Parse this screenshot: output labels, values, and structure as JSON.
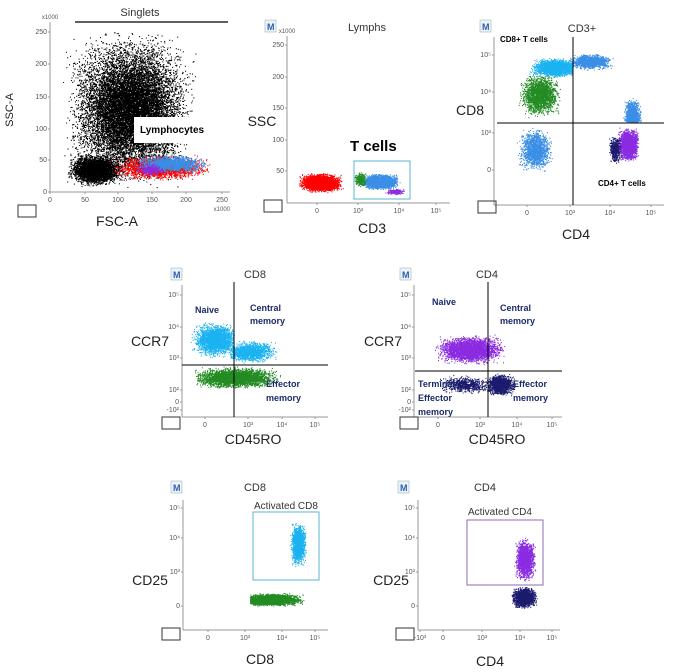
{
  "colors": {
    "black": "#000000",
    "red": "#ff0000",
    "lightblue": "#1ab2f0",
    "blue": "#3a8ee6",
    "green": "#228b22",
    "purple": "#8a2be2",
    "navy": "#1b1b6e",
    "gate_blue": "#5ab4d6",
    "gate_purple": "#8e6bb0"
  },
  "m_badge": "M",
  "panels": [
    {
      "id": "singlets",
      "title": "Singlets",
      "xlabel": "FSC-A",
      "ylabel": "SSC-A",
      "xscale": "x1000",
      "yscale": "x1000",
      "xticks": [
        "0",
        "50",
        "100",
        "150",
        "200",
        "250"
      ],
      "yticks": [
        "250",
        "200",
        "150",
        "100",
        "50",
        "0"
      ],
      "gates": [
        "Lymphocytes"
      ]
    },
    {
      "id": "lymphs",
      "title": "Lymphs",
      "xlabel": "CD3",
      "ylabel": "SSC",
      "yscale": "x1000",
      "xticks": [
        "0",
        "10³",
        "10⁴",
        "10⁵"
      ],
      "yticks": [
        "250",
        "200",
        "150",
        "100",
        "50"
      ],
      "gates": [
        "T cells"
      ]
    },
    {
      "id": "cd3",
      "title": "CD3+",
      "xlabel": "CD4",
      "ylabel": "CD8",
      "xticks": [
        "0",
        "10³",
        "10⁴",
        "10⁵"
      ],
      "yticks": [
        "10⁵",
        "10⁴",
        "10³",
        "0"
      ],
      "gates": [
        "CD8+ T cells",
        "CD4+ T cells"
      ]
    },
    {
      "id": "cd8mem",
      "title": "CD8",
      "xlabel": "CD45RO",
      "ylabel": "CCR7",
      "xticks": [
        "0",
        "10³",
        "10⁴",
        "10⁵"
      ],
      "yticks": [
        "10⁵",
        "10⁴",
        "10³",
        "10²",
        "0",
        "-10²"
      ],
      "gates": [
        "Naive",
        "Central",
        "memory",
        "Effector",
        "memory"
      ]
    },
    {
      "id": "cd4mem",
      "title": "CD4",
      "xlabel": "CD45RO",
      "ylabel": "CCR7",
      "xticks": [
        "0",
        "10³",
        "10⁴",
        "10⁵"
      ],
      "yticks": [
        "10⁵",
        "10⁴",
        "10³",
        "10²",
        "0",
        "-10²"
      ],
      "gates": [
        "Naive",
        "Central",
        "memory",
        "Terminal",
        "Effector",
        "memory",
        "Effector",
        "memory"
      ]
    },
    {
      "id": "cd8act",
      "title": "CD8",
      "xlabel": "CD8",
      "ylabel": "CD25",
      "xticks": [
        "0",
        "10³",
        "10⁴",
        "10⁵"
      ],
      "yticks": [
        "10⁵",
        "10⁴",
        "10³",
        "0"
      ],
      "gates": [
        "Activated CD8"
      ]
    },
    {
      "id": "cd4act",
      "title": "CD4",
      "xlabel": "CD4",
      "ylabel": "CD25",
      "xticks": [
        "-10³",
        "0",
        "10³",
        "10⁴",
        "10⁵"
      ],
      "yticks": [
        "10⁵",
        "10⁴",
        "10³",
        "0"
      ],
      "gates": [
        "Activated CD4"
      ]
    }
  ]
}
